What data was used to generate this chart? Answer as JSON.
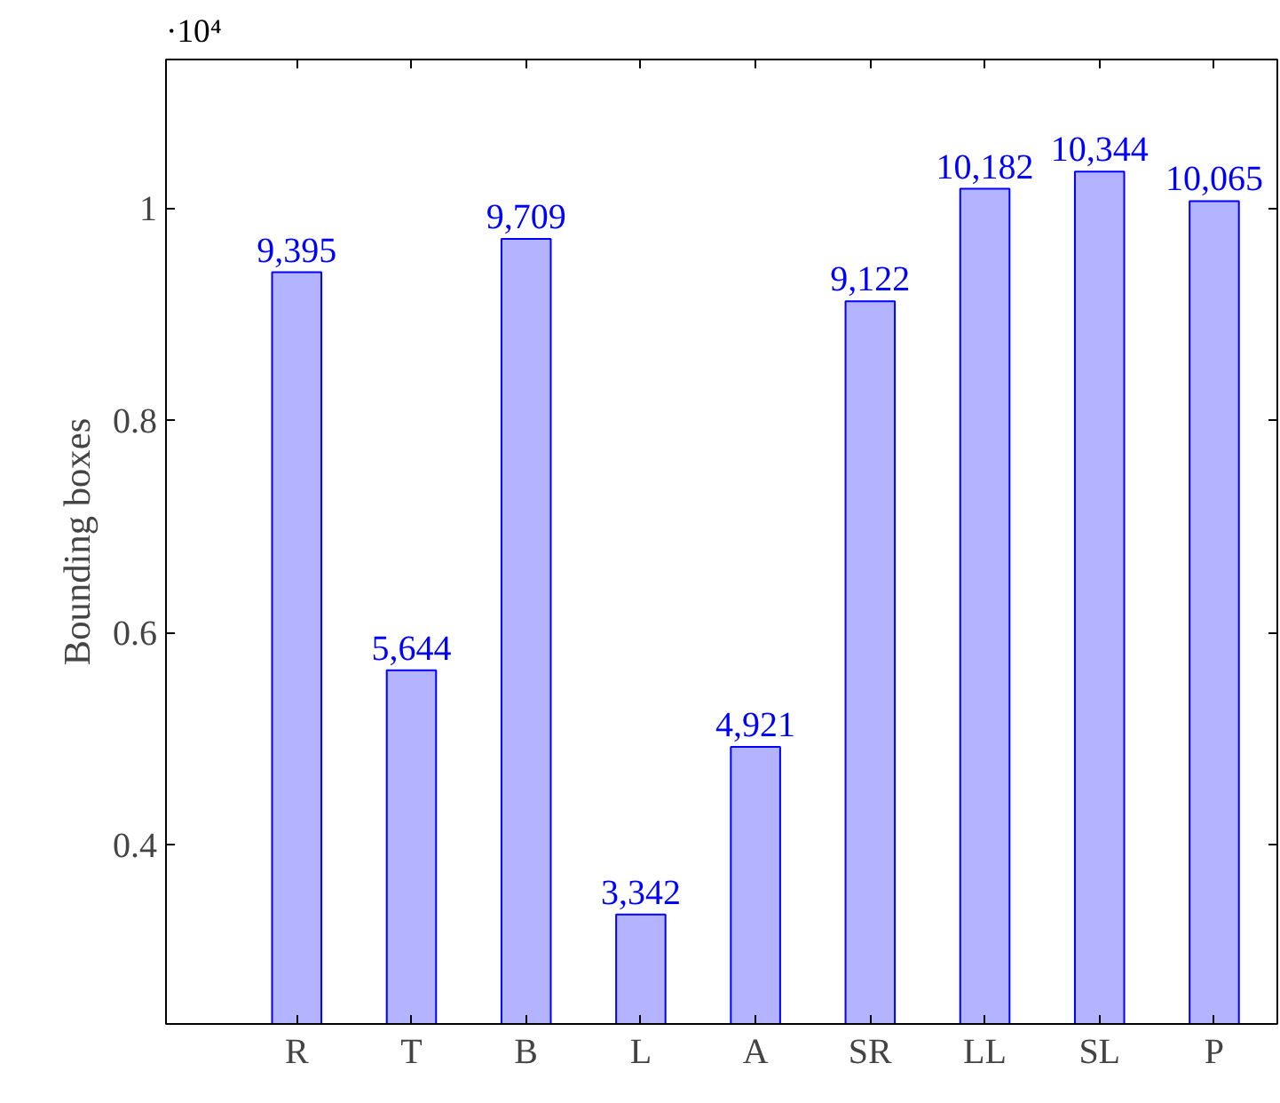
{
  "chart_data": {
    "type": "bar",
    "ylabel": "Bounding boxes",
    "annotations": [
      "·10⁴",
      {
        "text": "9,395",
        "x": "R",
        "y": 0.9395
      },
      {
        "text": "5,644",
        "x": "T",
        "y": 0.5644
      },
      {
        "text": "9,709",
        "x": "B",
        "y": 0.9709
      },
      {
        "text": "3,342",
        "x": "L",
        "y": 0.3342
      },
      {
        "text": "4,921",
        "x": "A",
        "y": 0.4921
      },
      {
        "text": "9,122",
        "x": "SR",
        "y": 0.9122
      },
      {
        "text": "10,182",
        "x": "LL",
        "y": 1.0182
      },
      {
        "text": "10,344",
        "x": "SL",
        "y": 1.0344
      },
      {
        "text": "10,065",
        "x": "P",
        "y": 1.0065
      }
    ],
    "categories": [
      "R",
      "T",
      "B",
      "L",
      "A",
      "SR",
      "LL",
      "SL",
      "P"
    ],
    "values": [
      0.9395,
      0.5644,
      0.9709,
      0.3342,
      0.4921,
      0.9122,
      1.0182,
      1.0344,
      1.0065
    ],
    "color": "#b3b3ff",
    "ylim": [
      0.231,
      1.14
    ],
    "yticks": [
      0.4,
      0.6,
      0.8,
      1
    ],
    "grid": false
  }
}
